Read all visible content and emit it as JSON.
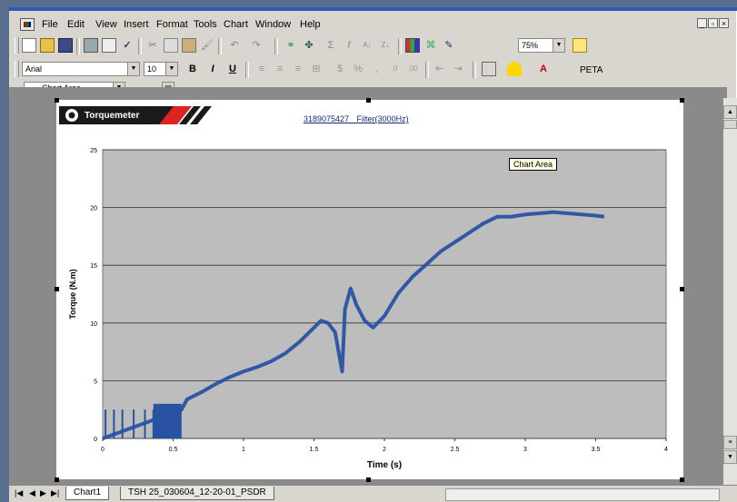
{
  "menu": {
    "items": [
      "File",
      "Edit",
      "View",
      "Insert",
      "Format",
      "Tools",
      "Chart",
      "Window",
      "Help"
    ]
  },
  "toolbar": {
    "zoom": "75%"
  },
  "format_toolbar": {
    "font_name": "Arial",
    "font_size": "10",
    "bold": "B",
    "italic": "I",
    "underline": "U",
    "extra_label": "PETA"
  },
  "chart_toolbar": {
    "object_selector": "Chart Area"
  },
  "chart_header": {
    "logo_text": "Torquemeter",
    "title": "3189075427 Filter(3000Hz)"
  },
  "tooltip": "Chart Area",
  "chart_data": {
    "type": "line",
    "title": "3189075427 Filter(3000Hz)",
    "xlabel": "Time (s)",
    "ylabel": "Torque (N.m)",
    "xlim": [
      0,
      4
    ],
    "ylim": [
      0,
      25
    ],
    "x_ticks": [
      "0",
      "0.5",
      "1",
      "1.5",
      "2",
      "2.5",
      "3",
      "3.5",
      "4"
    ],
    "y_ticks": [
      "0",
      "5",
      "10",
      "15",
      "20",
      "25"
    ],
    "grid": "horizontal",
    "color": "#2952a3",
    "series": [
      {
        "x": [
          0,
          0.56,
          0.6,
          0.7,
          0.8,
          0.9,
          1.0,
          1.1,
          1.2,
          1.3,
          1.4,
          1.5,
          1.55,
          1.6,
          1.65,
          1.7,
          1.72,
          1.76,
          1.8,
          1.86,
          1.92,
          2.0,
          2.1,
          2.2,
          2.3,
          2.4,
          2.5,
          2.6,
          2.7,
          2.8,
          2.9,
          3.0,
          3.1,
          3.2,
          3.3,
          3.4,
          3.5,
          3.56
        ],
        "y": [
          0,
          2.5,
          3.4,
          4.0,
          4.7,
          5.3,
          5.8,
          6.2,
          6.7,
          7.4,
          8.4,
          9.6,
          10.2,
          10.0,
          9.2,
          5.8,
          11.2,
          13.0,
          11.6,
          10.2,
          9.6,
          10.6,
          12.6,
          14.0,
          15.1,
          16.2,
          17.0,
          17.8,
          18.6,
          19.2,
          19.2,
          19.4,
          19.5,
          19.6,
          19.5,
          19.4,
          19.3,
          19.2
        ]
      }
    ]
  }
}
